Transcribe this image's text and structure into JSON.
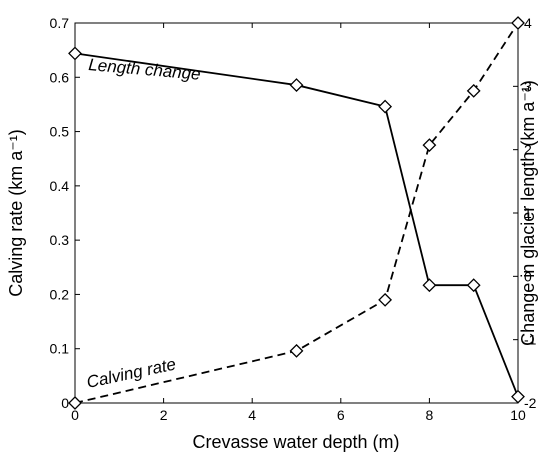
{
  "chart_data": {
    "type": "line",
    "xlabel": "Crevasse water depth (m)",
    "ylabel_left": "Calving rate (km a⁻¹)",
    "ylabel_right": "Change in glacier length (km a⁻¹)",
    "xlim": [
      0,
      10
    ],
    "ylim_left": [
      0,
      0.7
    ],
    "ylim_right": [
      -2,
      4
    ],
    "x_ticks": [
      "0",
      "2",
      "4",
      "6",
      "8",
      "10"
    ],
    "y_left_ticks": [
      "0",
      "0.1",
      "0.2",
      "0.3",
      "0.4",
      "0.5",
      "0.6",
      "0.7"
    ],
    "y_right_ticks": [
      "-2",
      "-1",
      "0",
      "1",
      "2",
      "3",
      "4"
    ],
    "grid": false,
    "legend": "none",
    "marker": "diamond",
    "series": [
      {
        "axis": "left",
        "line_style": "dashed",
        "color": "#000000",
        "x": [
          0,
          5,
          7,
          8,
          9,
          10
        ],
        "y": [
          0.0,
          0.096,
          0.19,
          0.475,
          0.575,
          0.7
        ]
      },
      {
        "axis": "right",
        "line_style": "solid",
        "color": "#000000",
        "x": [
          0,
          5,
          7,
          8,
          9,
          10
        ],
        "y": [
          3.52,
          3.02,
          2.68,
          -0.14,
          -0.14,
          -1.9
        ]
      }
    ],
    "annotations": [
      "Length change",
      "Calving rate"
    ]
  }
}
